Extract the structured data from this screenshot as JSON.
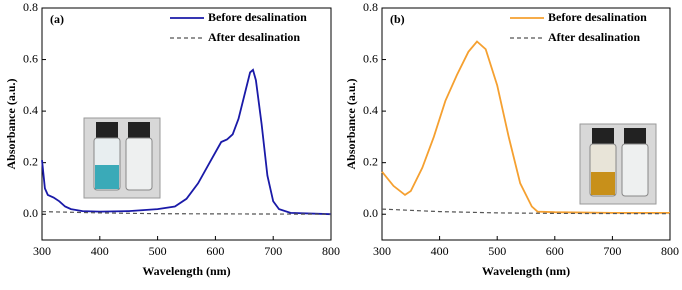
{
  "chart_data": [
    {
      "type": "line",
      "panel_label": "(a)",
      "x_label": "Wavelength (nm)",
      "y_label": "Absorbance (a.u.)",
      "xlim": [
        300,
        800
      ],
      "xticks": [
        300,
        400,
        500,
        600,
        700,
        800
      ],
      "ylim": [
        -0.1,
        0.8
      ],
      "yticks": [
        {
          "value": 0,
          "label": "0.0"
        },
        0.2,
        0.4,
        0.6,
        0.8
      ],
      "series": [
        {
          "name": "Before desalination",
          "color": "#1a1aa8",
          "dashed": false,
          "x": [
            300,
            305,
            310,
            320,
            330,
            340,
            350,
            370,
            400,
            450,
            500,
            530,
            550,
            570,
            590,
            610,
            620,
            630,
            640,
            650,
            660,
            665,
            670,
            680,
            690,
            700,
            710,
            730,
            800
          ],
          "values": [
            0.21,
            0.1,
            0.075,
            0.065,
            0.05,
            0.03,
            0.02,
            0.012,
            0.01,
            0.012,
            0.02,
            0.03,
            0.06,
            0.12,
            0.2,
            0.28,
            0.29,
            0.31,
            0.37,
            0.46,
            0.55,
            0.56,
            0.52,
            0.35,
            0.15,
            0.05,
            0.02,
            0.005,
            0
          ]
        },
        {
          "name": "After desalination",
          "color": "#555555",
          "dashed": true,
          "x": [
            300,
            400,
            500,
            800
          ],
          "values": [
            0.01,
            0.005,
            0.002,
            0
          ]
        }
      ]
    },
    {
      "type": "line",
      "panel_label": "(b)",
      "x_label": "Wavelength (nm)",
      "y_label": "Absorbance (a.u.)",
      "xlim": [
        300,
        800
      ],
      "xticks": [
        300,
        400,
        500,
        600,
        700,
        800
      ],
      "ylim": [
        -0.1,
        0.8
      ],
      "yticks": [
        {
          "value": 0,
          "label": "0.0"
        },
        0.2,
        0.4,
        0.6,
        0.8
      ],
      "series": [
        {
          "name": "Before desalination",
          "color": "#f5a030",
          "dashed": false,
          "x": [
            300,
            320,
            340,
            350,
            370,
            390,
            410,
            430,
            450,
            465,
            480,
            500,
            520,
            540,
            560,
            570,
            600,
            700,
            800
          ],
          "values": [
            0.165,
            0.11,
            0.075,
            0.09,
            0.18,
            0.3,
            0.44,
            0.54,
            0.63,
            0.67,
            0.64,
            0.5,
            0.3,
            0.12,
            0.03,
            0.01,
            0.008,
            0.005,
            0.005
          ]
        },
        {
          "name": "After desalination",
          "color": "#555555",
          "dashed": true,
          "x": [
            300,
            400,
            500,
            600,
            800
          ],
          "values": [
            0.02,
            0.01,
            0.005,
            0.003,
            0.002
          ]
        }
      ]
    }
  ]
}
